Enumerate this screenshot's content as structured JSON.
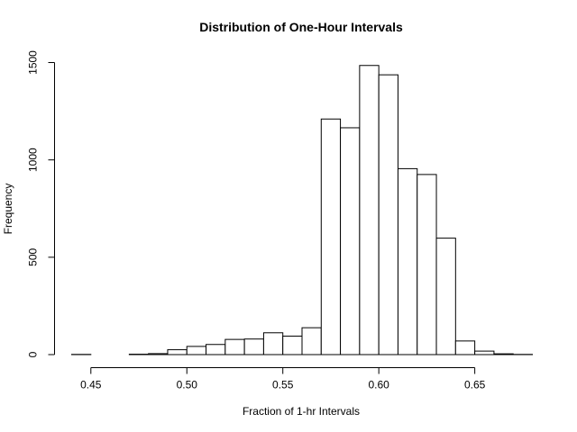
{
  "chart_data": {
    "type": "bar",
    "title": "Distribution of One-Hour Intervals",
    "xlabel": "Fraction of 1-hr Intervals",
    "ylabel": "Frequency",
    "bin_width": 0.01,
    "bins_start": [
      0.44,
      0.45,
      0.46,
      0.47,
      0.48,
      0.49,
      0.5,
      0.51,
      0.52,
      0.53,
      0.54,
      0.55,
      0.56,
      0.57,
      0.58,
      0.59,
      0.6,
      0.61,
      0.62,
      0.63,
      0.64,
      0.65,
      0.66,
      0.67
    ],
    "values": [
      1,
      0,
      0,
      2,
      5,
      25,
      42,
      52,
      78,
      80,
      112,
      95,
      138,
      1210,
      1165,
      1485,
      1437,
      955,
      925,
      598,
      70,
      18,
      4,
      1
    ],
    "xlim": [
      0.44,
      0.68
    ],
    "ylim": [
      0,
      1500
    ],
    "xticks": [
      0.45,
      0.5,
      0.55,
      0.6,
      0.65
    ],
    "xtick_labels": [
      "0.45",
      "0.50",
      "0.55",
      "0.60",
      "0.65"
    ],
    "yticks": [
      0,
      500,
      1000,
      1500
    ],
    "ytick_labels": [
      "0",
      "500",
      "1000",
      "1500"
    ],
    "grid": false,
    "bar_fill": "#ffffff",
    "bar_stroke": "#000000"
  }
}
